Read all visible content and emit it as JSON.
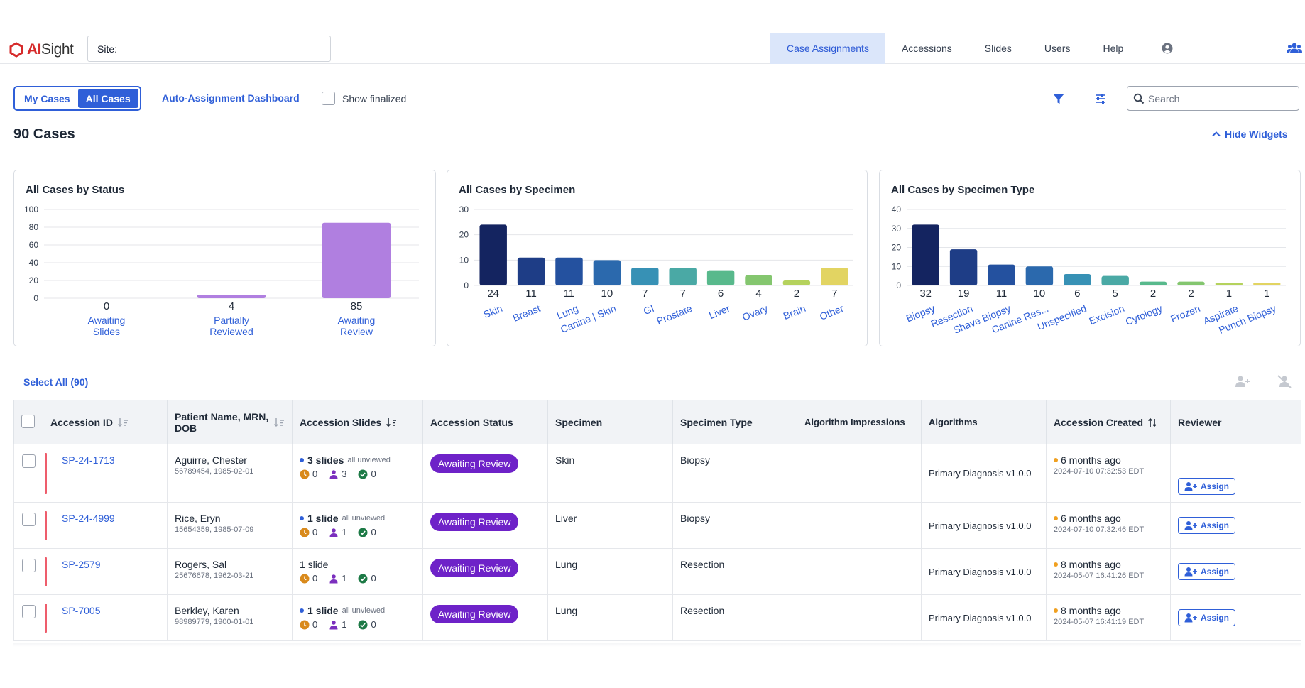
{
  "brand": {
    "logo_ai": "AI",
    "logo_rest": "Sight"
  },
  "site": {
    "label": "Site:"
  },
  "nav": {
    "tabs": [
      {
        "label": "Case Assignments"
      },
      {
        "label": "Accessions"
      },
      {
        "label": "Slides"
      },
      {
        "label": "Users"
      },
      {
        "label": "Help"
      }
    ],
    "active_tab": "Case Assignments"
  },
  "toolbar": {
    "my_cases": "My Cases",
    "all_cases": "All Cases",
    "dashboard_link": "Auto-Assignment Dashboard",
    "show_finalized": "Show finalized",
    "search_placeholder": "Search"
  },
  "summary": {
    "case_count": "90 Cases",
    "hide_widgets": "Hide Widgets"
  },
  "chart_data": [
    {
      "type": "bar",
      "title": "All Cases by Status",
      "categories": [
        "Awaiting Slides",
        "Partially Reviewed",
        "Awaiting Review"
      ],
      "category_lines": [
        [
          "Awaiting",
          "Slides"
        ],
        [
          "Partially",
          "Reviewed"
        ],
        [
          "Awaiting",
          "Review"
        ]
      ],
      "values": [
        0,
        4,
        85
      ],
      "ylim": [
        0,
        100
      ],
      "yticks": [
        0,
        20,
        40,
        60,
        80,
        100
      ],
      "colors": [
        "#b07fe0",
        "#b07fe0",
        "#b07fe0"
      ]
    },
    {
      "type": "bar",
      "title": "All Cases by Specimen",
      "categories": [
        "Skin",
        "Breast",
        "Lung",
        "Canine | Skin",
        "GI",
        "Prostate",
        "Liver",
        "Ovary",
        "Brain",
        "Other"
      ],
      "values": [
        24,
        11,
        11,
        10,
        7,
        7,
        6,
        4,
        2,
        7
      ],
      "ylim": [
        0,
        30
      ],
      "yticks": [
        0,
        10,
        20,
        30
      ],
      "colors": [
        "#142460",
        "#1e3d86",
        "#24519f",
        "#2b69ad",
        "#3791b5",
        "#4aa9a5",
        "#58b98c",
        "#84c66f",
        "#b5d25d",
        "#e2d462"
      ]
    },
    {
      "type": "bar",
      "title": "All Cases by Specimen Type",
      "categories": [
        "Biopsy",
        "Resection",
        "Shave Biopsy",
        "Canine Res...",
        "Unspecified",
        "Excision",
        "Cytology",
        "Frozen",
        "Aspirate",
        "Punch Biopsy"
      ],
      "values": [
        32,
        19,
        11,
        10,
        6,
        5,
        2,
        2,
        1,
        1
      ],
      "ylim": [
        0,
        40
      ],
      "yticks": [
        0,
        10,
        20,
        30,
        40
      ],
      "colors": [
        "#142460",
        "#1e3d86",
        "#24519f",
        "#2b69ad",
        "#3791b5",
        "#4aa9a5",
        "#58b98c",
        "#84c66f",
        "#b5d25d",
        "#e2d462"
      ]
    }
  ],
  "table": {
    "select_all": "Select All (90)",
    "headers": {
      "accession_id": "Accession ID",
      "patient": "Patient Name, MRN, DOB",
      "slides": "Accession Slides",
      "status": "Accession Status",
      "specimen": "Specimen",
      "specimen_type": "Specimen Type",
      "impressions": "Algorithm Impressions",
      "algorithms": "Algorithms",
      "created": "Accession Created",
      "reviewer": "Reviewer"
    },
    "assign_label": "Assign",
    "rows": [
      {
        "id": "SP-24-1713",
        "name": "Aguirre, Chester",
        "mrn_dob": "56789454, 1985-02-01",
        "slides": "3 slides",
        "slides_note": "all unviewed",
        "c_pending": "0",
        "c_users": "3",
        "c_done": "0",
        "status": "Awaiting Review",
        "specimen": "Skin",
        "specimen_type": "Biopsy",
        "algorithm": "Primary Diagnosis v1.0.0",
        "created_ago": "6 months ago",
        "created_ts": "2024-07-10 07:32:53 EDT"
      },
      {
        "id": "SP-24-4999",
        "name": "Rice, Eryn",
        "mrn_dob": "15654359, 1985-07-09",
        "slides": "1 slide",
        "slides_note": "all unviewed",
        "c_pending": "0",
        "c_users": "1",
        "c_done": "0",
        "status": "Awaiting Review",
        "specimen": "Liver",
        "specimen_type": "Biopsy",
        "algorithm": "Primary Diagnosis v1.0.0",
        "created_ago": "6 months ago",
        "created_ts": "2024-07-10 07:32:46 EDT"
      },
      {
        "id": "SP-2579",
        "name": "Rogers, Sal",
        "mrn_dob": "25676678, 1962-03-21",
        "slides": "1 slide",
        "slides_note": "",
        "c_pending": "0",
        "c_users": "1",
        "c_done": "0",
        "status": "Awaiting Review",
        "specimen": "Lung",
        "specimen_type": "Resection",
        "algorithm": "Primary Diagnosis v1.0.0",
        "created_ago": "8 months ago",
        "created_ts": "2024-05-07 16:41:26 EDT"
      },
      {
        "id": "SP-7005",
        "name": "Berkley, Karen",
        "mrn_dob": "98989779, 1900-01-01",
        "slides": "1 slide",
        "slides_note": "all unviewed",
        "c_pending": "0",
        "c_users": "1",
        "c_done": "0",
        "status": "Awaiting Review",
        "specimen": "Lung",
        "specimen_type": "Resection",
        "algorithm": "Primary Diagnosis v1.0.0",
        "created_ago": "8 months ago",
        "created_ts": "2024-05-07 16:41:19 EDT"
      }
    ]
  },
  "colors": {
    "accent": "#2f5fd8",
    "status_badge": "#6e22c8",
    "row_marker": "#ee5d6c"
  }
}
